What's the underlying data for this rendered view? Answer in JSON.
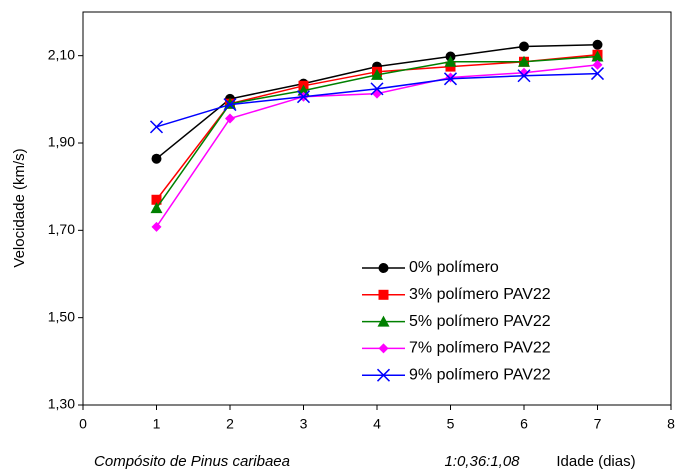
{
  "chart_data": {
    "type": "line",
    "y_label": "Velocidade (km/s)",
    "x_label": "Idade (dias)",
    "annotations": [
      "Compósito de Pinus caribaea",
      "1:0,36:1,08"
    ],
    "x": [
      1,
      2,
      3,
      4,
      5,
      6,
      7
    ],
    "xlim": [
      0,
      8
    ],
    "xticks": [
      0,
      1,
      2,
      3,
      4,
      5,
      6,
      7,
      8
    ],
    "ylim": [
      1.3,
      2.2
    ],
    "yticks": [
      {
        "value": 1.3,
        "label": "1,30"
      },
      {
        "value": 1.5,
        "label": "1,50"
      },
      {
        "value": 1.7,
        "label": "1,70"
      },
      {
        "value": 1.9,
        "label": "1,90"
      },
      {
        "value": 2.1,
        "label": "2,10"
      }
    ],
    "grid": false,
    "legend": "lower right",
    "series": [
      {
        "name": "0% polímero",
        "color": "#000000",
        "marker": "circle",
        "values": [
          1.864,
          2.001,
          2.036,
          2.075,
          2.098,
          2.121,
          2.125
        ]
      },
      {
        "name": "3% polímero PAV22",
        "color": "#ff0000",
        "marker": "square",
        "values": [
          1.77,
          1.99,
          2.031,
          2.063,
          2.075,
          2.086,
          2.102
        ]
      },
      {
        "name": "5% polímero PAV22",
        "color": "#008000",
        "marker": "triangle",
        "values": [
          1.751,
          1.99,
          2.02,
          2.056,
          2.086,
          2.086,
          2.098
        ]
      },
      {
        "name": "7% polímero PAV22",
        "color": "#ff00ff",
        "marker": "diamond",
        "values": [
          1.708,
          1.956,
          2.006,
          2.013,
          2.05,
          2.061,
          2.079
        ]
      },
      {
        "name": "9% polímero PAV22",
        "color": "#0000ff",
        "marker": "x",
        "values": [
          1.937,
          1.988,
          2.006,
          2.024,
          2.047,
          2.054,
          2.059
        ]
      }
    ]
  }
}
